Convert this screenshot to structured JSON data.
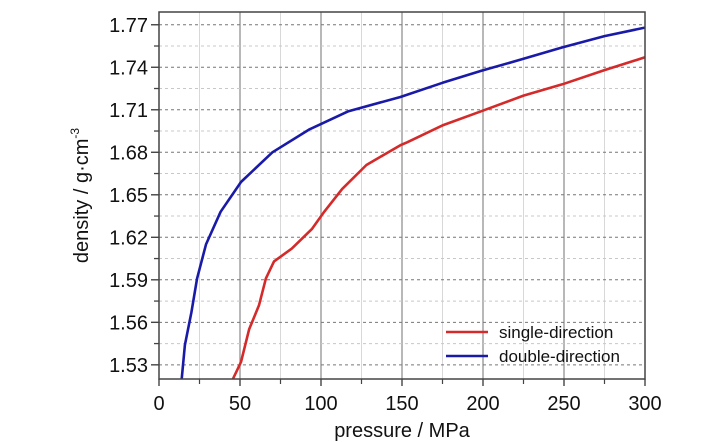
{
  "chart_data": {
    "type": "line",
    "title": "",
    "xlabel": "pressure / MPa",
    "ylabel_main": "density / g·cm",
    "ylabel_sup": "-3",
    "xlim": [
      0,
      300
    ],
    "ylim": [
      1.52,
      1.779
    ],
    "x_ticks": [
      0,
      50,
      100,
      150,
      200,
      250,
      300
    ],
    "x_tick_labels": [
      "0",
      "50",
      "100",
      "150",
      "200",
      "250",
      "300"
    ],
    "y_ticks": [
      1.53,
      1.56,
      1.59,
      1.62,
      1.65,
      1.68,
      1.71,
      1.74,
      1.77
    ],
    "y_tick_labels": [
      "1.53",
      "1.56",
      "1.59",
      "1.62",
      "1.65",
      "1.68",
      "1.71",
      "1.74",
      "1.77"
    ],
    "grid": true,
    "legend_position": "bottom-right",
    "series": [
      {
        "name": "single-direction",
        "color": "#d42a2a",
        "x": [
          45.6,
          50.6,
          55.6,
          61.7,
          66,
          71,
          82,
          94.5,
          102,
          113,
          128,
          149,
          153,
          175,
          199,
          225,
          249,
          275,
          300
        ],
        "y": [
          1.52,
          1.532,
          1.555,
          1.572,
          1.591,
          1.603,
          1.612,
          1.626,
          1.638,
          1.654,
          1.671,
          1.685,
          1.687,
          1.699,
          1.709,
          1.72,
          1.728,
          1.738,
          1.747
        ]
      },
      {
        "name": "double-direction",
        "color": "#1a1aa8",
        "x": [
          14,
          16,
          20,
          23.5,
          29,
          38,
          50.6,
          70,
          92.6,
          117,
          149,
          175,
          199,
          225,
          249,
          275,
          300
        ],
        "y": [
          1.52,
          1.544,
          1.567,
          1.591,
          1.615,
          1.638,
          1.659,
          1.68,
          1.696,
          1.709,
          1.719,
          1.729,
          1.7375,
          1.746,
          1.754,
          1.762,
          1.768
        ]
      }
    ]
  }
}
